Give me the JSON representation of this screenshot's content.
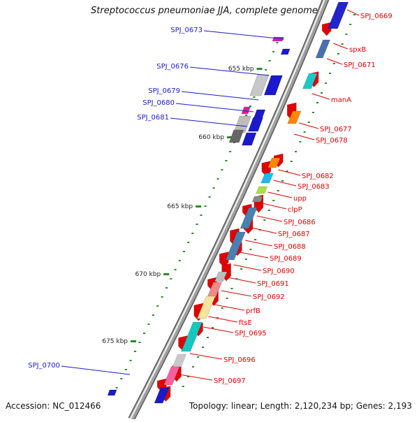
{
  "title": "Streptococcus pneumoniae JJA, complete genome",
  "accession_text": "Accession: NC_012466",
  "summary_text": "Topology: linear; Length: 2,120,234 bp; Genes: 2,193",
  "colors": {
    "backbone": "#a0a0a0",
    "label_right": "#e00000",
    "label_left": "#1a1acc",
    "tick": "#2a8a2a"
  },
  "kbp_ticks": [
    "655 kbp",
    "660 kbp",
    "665 kbp",
    "670 kbp",
    "675 kbp"
  ],
  "labels_left": [
    "SPJ_0673",
    "SPJ_0676",
    "SPJ_0679",
    "SPJ_0680",
    "SPJ_0681",
    "SPJ_0700"
  ],
  "labels_right": [
    "SPJ_0669",
    "spxB",
    "SPJ_0671",
    "manA",
    "SPJ_0677",
    "SPJ_0678",
    "SPJ_0682",
    "SPJ_0683",
    "upp",
    "clpP",
    "SPJ_0686",
    "SPJ_0687",
    "SPJ_0688",
    "SPJ_0689",
    "SPJ_0690",
    "SPJ_0691",
    "SPJ_0692",
    "prfB",
    "ftsE",
    "SPJ_0695",
    "SPJ_0696",
    "SPJ_0697"
  ]
}
